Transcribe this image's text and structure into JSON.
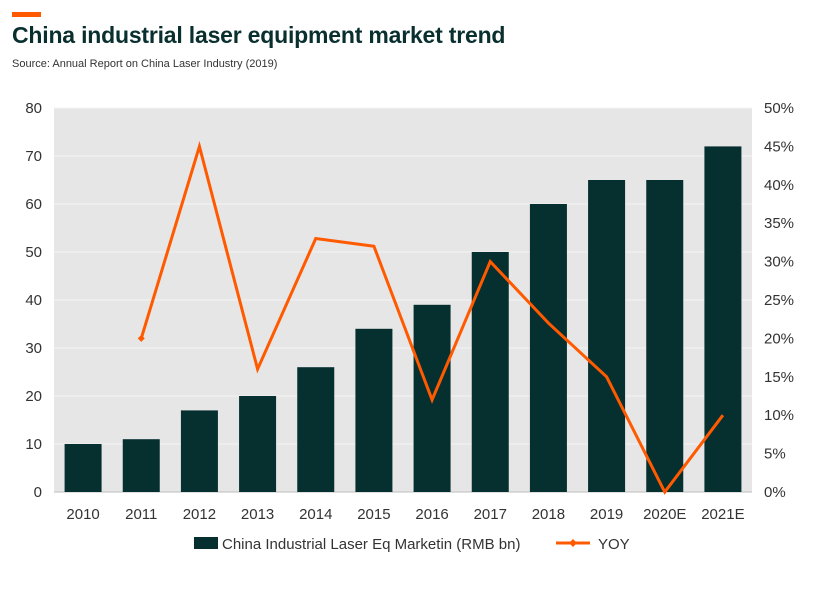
{
  "header": {
    "title": "China industrial laser equipment market trend",
    "source": "Source: Annual Report on China Laser Industry (2019)"
  },
  "colors": {
    "accent": "#ff5a00",
    "bar": "#062f2f",
    "line": "#ff5a00",
    "plot_background": "#e6e6e6",
    "gridline": "#f4f4f4"
  },
  "chart_data": {
    "type": "bar",
    "categories": [
      "2010",
      "2011",
      "2012",
      "2013",
      "2014",
      "2015",
      "2016",
      "2017",
      "2018",
      "2019",
      "2020E",
      "2021E"
    ],
    "series": [
      {
        "name": "China Industrial Laser Eq Marketin (RMB bn)",
        "type": "bar",
        "axis": "left",
        "values": [
          10,
          11,
          17,
          20,
          26,
          34,
          39,
          50,
          60,
          65,
          65,
          72
        ]
      },
      {
        "name": "YOY",
        "type": "line",
        "axis": "right",
        "values": [
          null,
          0.2,
          0.45,
          0.16,
          0.33,
          0.32,
          0.12,
          0.3,
          0.22,
          0.15,
          0.0,
          0.1
        ]
      }
    ],
    "y_left": {
      "min": 0,
      "max": 80,
      "step": 10,
      "ticks": [
        "0",
        "10",
        "20",
        "30",
        "40",
        "50",
        "60",
        "70",
        "80"
      ]
    },
    "y_right": {
      "min": 0,
      "max": 0.5,
      "step": 0.05,
      "ticks": [
        "0%",
        "5%",
        "10%",
        "15%",
        "20%",
        "25%",
        "30%",
        "35%",
        "40%",
        "45%",
        "50%"
      ]
    },
    "grid": true,
    "legend_position": "bottom"
  }
}
